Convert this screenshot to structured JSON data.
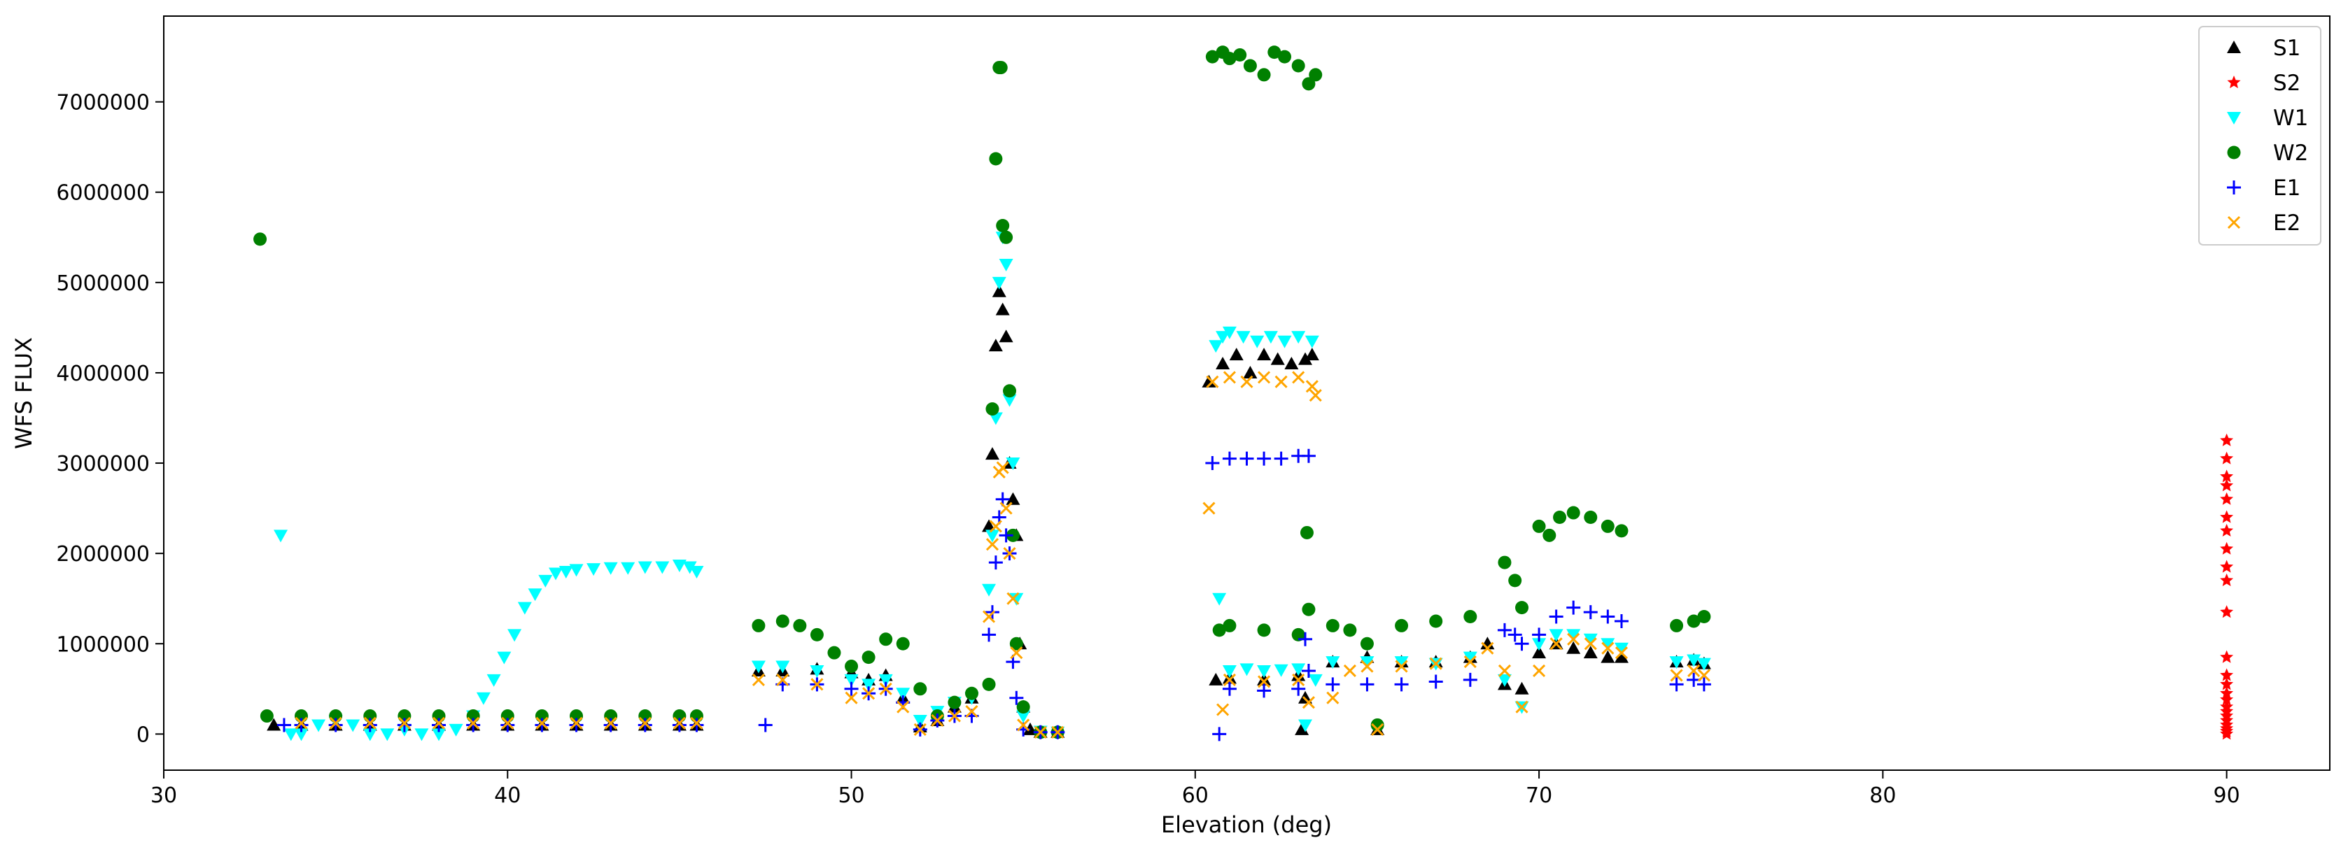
{
  "chart_data": {
    "type": "scatter",
    "title": "",
    "xlabel": "Elevation (deg)",
    "ylabel": "WFS FLUX",
    "xlim": [
      30,
      93
    ],
    "ylim": [
      -400000,
      7950000
    ],
    "xticks": [
      30,
      40,
      50,
      60,
      70,
      80,
      90
    ],
    "xtick_labels": [
      "30",
      "40",
      "50",
      "60",
      "70",
      "80",
      "90"
    ],
    "yticks": [
      0,
      1000000,
      2000000,
      3000000,
      4000000,
      5000000,
      6000000,
      7000000
    ],
    "ytick_labels": [
      "0",
      "1000000",
      "2000000",
      "3000000",
      "4000000",
      "5000000",
      "6000000",
      "7000000"
    ],
    "grid": false,
    "legend_position": "top-right",
    "series": [
      {
        "name": "S1",
        "color": "#000000",
        "marker": "triangle-up",
        "x": [
          33.2,
          34,
          35,
          36,
          37,
          38,
          39,
          40,
          41,
          42,
          43,
          44,
          45,
          45.5,
          47.3,
          48,
          49,
          50,
          50.5,
          51,
          51.5,
          52,
          52.5,
          53,
          53.5,
          54,
          54.1,
          54.2,
          54.3,
          54.4,
          54.5,
          54.6,
          54.7,
          54.8,
          54.9,
          55,
          55.2,
          55.5,
          56,
          60.4,
          60.8,
          61.2,
          61.6,
          62,
          62.4,
          62.8,
          63.2,
          63.4,
          60.6,
          61,
          62,
          63,
          63.1,
          63.2,
          64,
          65,
          65.3,
          66,
          67,
          68,
          68.5,
          69,
          69.5,
          70,
          70.5,
          71,
          71.5,
          72,
          72.4,
          74,
          74.5,
          74.8
        ],
        "y": [
          100000,
          100000,
          100000,
          100000,
          100000,
          100000,
          100000,
          100000,
          100000,
          100000,
          100000,
          100000,
          100000,
          100000,
          700000,
          700000,
          720000,
          680000,
          600000,
          650000,
          400000,
          80000,
          150000,
          300000,
          400000,
          2300000,
          3100000,
          4300000,
          4900000,
          4700000,
          4400000,
          3000000,
          2600000,
          2200000,
          1000000,
          300000,
          50000,
          20000,
          20000,
          3900000,
          4100000,
          4200000,
          4000000,
          4200000,
          4150000,
          4100000,
          4150000,
          4200000,
          600000,
          620000,
          600000,
          650000,
          50000,
          400000,
          800000,
          850000,
          50000,
          800000,
          800000,
          850000,
          1000000,
          550000,
          500000,
          900000,
          1000000,
          950000,
          900000,
          850000,
          850000,
          800000,
          820000,
          780000
        ]
      },
      {
        "name": "S2",
        "color": "#ff0000",
        "marker": "star",
        "x": [
          90,
          90,
          90,
          90,
          90,
          90,
          90,
          90,
          90,
          90,
          90,
          90,
          90,
          90,
          90,
          90,
          90,
          90,
          90,
          90,
          90,
          90,
          90,
          90
        ],
        "y": [
          3250000,
          3050000,
          2850000,
          2750000,
          2600000,
          2400000,
          2250000,
          2050000,
          1850000,
          1700000,
          1350000,
          850000,
          650000,
          550000,
          450000,
          380000,
          300000,
          250000,
          200000,
          150000,
          100000,
          60000,
          30000,
          0
        ]
      },
      {
        "name": "W1",
        "color": "#00ffff",
        "marker": "triangle-down",
        "x": [
          33.4,
          33.7,
          34,
          34.5,
          35,
          35.5,
          36,
          36.5,
          37,
          37.5,
          38,
          38.5,
          39,
          39.3,
          39.6,
          39.9,
          40.2,
          40.5,
          40.8,
          41.1,
          41.4,
          41.7,
          42,
          42.5,
          43,
          43.5,
          44,
          44.5,
          45,
          45.3,
          45.5,
          47.3,
          48,
          49,
          50,
          50.5,
          51,
          51.5,
          52,
          52.5,
          53,
          53.5,
          54,
          54.1,
          54.2,
          54.3,
          54.4,
          54.5,
          54.6,
          54.7,
          54.8,
          55,
          55.5,
          56,
          60.6,
          60.8,
          61,
          61.4,
          61.8,
          62.2,
          62.6,
          63,
          63.4,
          60.7,
          61,
          61.5,
          62,
          62.5,
          63,
          63.2,
          63.5,
          64,
          65,
          66,
          67,
          68,
          69,
          69.5,
          70,
          70.5,
          71,
          71.5,
          72,
          72.4,
          74,
          74.5,
          74.8
        ],
        "y": [
          2200000,
          0,
          0,
          100000,
          150000,
          100000,
          0,
          0,
          50000,
          0,
          0,
          50000,
          200000,
          400000,
          600000,
          850000,
          1100000,
          1400000,
          1550000,
          1700000,
          1780000,
          1800000,
          1820000,
          1830000,
          1840000,
          1840000,
          1850000,
          1850000,
          1870000,
          1850000,
          1800000,
          750000,
          750000,
          700000,
          600000,
          550000,
          600000,
          450000,
          150000,
          250000,
          350000,
          400000,
          1600000,
          2200000,
          3500000,
          5000000,
          5500000,
          5200000,
          3700000,
          3000000,
          1500000,
          200000,
          30000,
          20000,
          4300000,
          4400000,
          4450000,
          4400000,
          4350000,
          4400000,
          4350000,
          4400000,
          4350000,
          1500000,
          700000,
          720000,
          700000,
          710000,
          720000,
          100000,
          600000,
          800000,
          800000,
          800000,
          780000,
          850000,
          600000,
          300000,
          1000000,
          1100000,
          1100000,
          1050000,
          1000000,
          950000,
          800000,
          820000,
          780000
        ]
      },
      {
        "name": "W2",
        "color": "#008000",
        "marker": "circle",
        "x": [
          32.8,
          33,
          34,
          35,
          36,
          37,
          38,
          39,
          40,
          41,
          42,
          43,
          44,
          45,
          45.5,
          47.3,
          48,
          48.5,
          49,
          49.5,
          50,
          50.5,
          51,
          51.5,
          52,
          52.5,
          53,
          53.5,
          54,
          54.1,
          54.2,
          54.3,
          54.35,
          54.4,
          54.5,
          54.6,
          54.7,
          54.8,
          55,
          55.5,
          56,
          60.5,
          60.8,
          61,
          61.3,
          61.6,
          62,
          62.3,
          62.6,
          63,
          63.3,
          63.5,
          60.7,
          61,
          62,
          63,
          63.25,
          63.3,
          64,
          64.5,
          65,
          65.3,
          66,
          67,
          68,
          69,
          69.3,
          69.5,
          70,
          70.3,
          70.6,
          71,
          71.5,
          72,
          72.4,
          74,
          74.5,
          74.8
        ],
        "y": [
          5480000,
          200000,
          200000,
          200000,
          200000,
          200000,
          200000,
          200000,
          200000,
          200000,
          200000,
          200000,
          200000,
          200000,
          200000,
          1200000,
          1250000,
          1200000,
          1100000,
          900000,
          750000,
          850000,
          1050000,
          1000000,
          500000,
          200000,
          350000,
          450000,
          550000,
          3600000,
          6370000,
          7380000,
          7380000,
          5630000,
          5500000,
          3800000,
          2200000,
          1000000,
          300000,
          20000,
          20000,
          7500000,
          7550000,
          7480000,
          7520000,
          7400000,
          7300000,
          7550000,
          7500000,
          7400000,
          7200000,
          7300000,
          1150000,
          1200000,
          1150000,
          1100000,
          2230000,
          1380000,
          1200000,
          1150000,
          1000000,
          100000,
          1200000,
          1250000,
          1300000,
          1900000,
          1700000,
          1400000,
          2300000,
          2200000,
          2400000,
          2450000,
          2400000,
          2300000,
          2250000,
          1200000,
          1250000,
          1300000
        ]
      },
      {
        "name": "E1",
        "color": "#0000ff",
        "marker": "plus",
        "x": [
          33.5,
          34,
          35,
          36,
          37,
          38,
          39,
          40,
          41,
          42,
          43,
          44,
          45,
          45.5,
          47.5,
          48,
          49,
          50,
          50.5,
          51,
          51.5,
          52,
          52.5,
          53,
          53.5,
          54,
          54.1,
          54.2,
          54.3,
          54.4,
          54.5,
          54.6,
          54.7,
          54.8,
          55,
          55.5,
          56,
          60.5,
          61,
          61.5,
          62,
          62.5,
          63,
          63.3,
          60.7,
          61,
          62,
          63,
          63.2,
          63.3,
          64,
          65,
          66,
          67,
          68,
          69,
          69.3,
          69.5,
          70,
          70.5,
          71,
          71.5,
          72,
          72.4,
          74,
          74.5,
          74.8
        ],
        "y": [
          100000,
          100000,
          100000,
          100000,
          100000,
          100000,
          100000,
          100000,
          100000,
          100000,
          100000,
          100000,
          100000,
          100000,
          100000,
          550000,
          550000,
          500000,
          450000,
          500000,
          350000,
          50000,
          150000,
          200000,
          200000,
          1100000,
          1350000,
          1900000,
          2400000,
          2600000,
          2200000,
          2000000,
          800000,
          400000,
          50000,
          20000,
          20000,
          3000000,
          3050000,
          3050000,
          3050000,
          3050000,
          3080000,
          3080000,
          0,
          500000,
          480000,
          500000,
          1050000,
          700000,
          550000,
          550000,
          550000,
          580000,
          600000,
          1150000,
          1100000,
          1000000,
          1100000,
          1300000,
          1400000,
          1350000,
          1300000,
          1250000,
          550000,
          600000,
          550000
        ]
      },
      {
        "name": "E2",
        "color": "#ffa500",
        "marker": "x",
        "x": [
          34,
          35,
          36,
          37,
          38,
          39,
          40,
          41,
          42,
          43,
          44,
          45,
          45.5,
          47.3,
          48,
          49,
          50,
          50.5,
          51,
          51.5,
          52,
          52.5,
          53,
          53.5,
          54,
          54.1,
          54.2,
          54.3,
          54.4,
          54.5,
          54.6,
          54.7,
          54.8,
          55,
          55.5,
          56,
          60.4,
          60.5,
          61,
          61.5,
          62,
          62.5,
          63,
          63.4,
          63.5,
          60.8,
          61,
          62,
          63,
          63.3,
          64,
          64.5,
          65,
          65.3,
          66,
          67,
          68,
          68.5,
          69,
          69.5,
          70,
          70.5,
          71,
          71.5,
          72,
          72.4,
          74,
          74.5,
          74.8
        ],
        "y": [
          120000,
          120000,
          120000,
          120000,
          120000,
          120000,
          120000,
          120000,
          120000,
          120000,
          120000,
          120000,
          120000,
          600000,
          600000,
          550000,
          400000,
          450000,
          500000,
          300000,
          50000,
          150000,
          200000,
          250000,
          1300000,
          2100000,
          2300000,
          2900000,
          2950000,
          2500000,
          2000000,
          1500000,
          900000,
          100000,
          20000,
          20000,
          2500000,
          3900000,
          3950000,
          3900000,
          3950000,
          3900000,
          3950000,
          3850000,
          3750000,
          270000,
          600000,
          580000,
          600000,
          350000,
          400000,
          700000,
          750000,
          50000,
          750000,
          780000,
          800000,
          950000,
          700000,
          300000,
          700000,
          1000000,
          1050000,
          1000000,
          950000,
          900000,
          650000,
          700000,
          650000
        ]
      }
    ]
  }
}
